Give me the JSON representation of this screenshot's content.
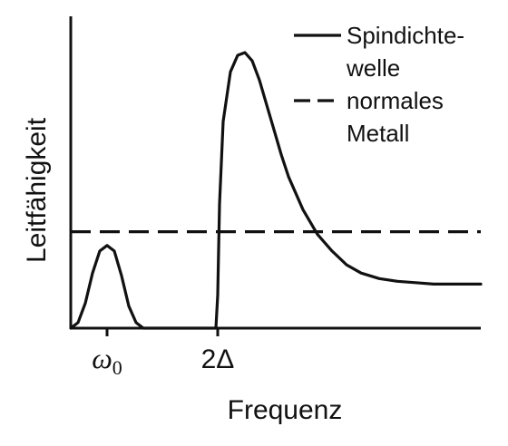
{
  "chart_data": {
    "type": "line",
    "xlabel": "Frequenz",
    "ylabel": "Leitfähigkeit",
    "x_ticks": [
      {
        "label": "ω",
        "subscript": "0",
        "x": 1.0
      },
      {
        "label": "2Δ",
        "subscript": "",
        "x": 4.05
      }
    ],
    "xlim": [
      0,
      11.3
    ],
    "ylim": [
      0,
      1.0
    ],
    "grid": false,
    "legend": {
      "placement": "top-right",
      "entries": [
        {
          "lines": [
            "Spindichte-",
            "welle"
          ],
          "style": "solid"
        },
        {
          "lines": [
            "normales",
            "Metall"
          ],
          "style": "dashed"
        }
      ]
    },
    "series": [
      {
        "style": "solid",
        "color": "#111111",
        "x": [
          0,
          0.2,
          0.4,
          0.6,
          0.8,
          1.0,
          1.2,
          1.4,
          1.6,
          1.8,
          2.0,
          4.0,
          4.05,
          4.1,
          4.2,
          4.4,
          4.6,
          4.8,
          5.0,
          5.2,
          5.4,
          5.6,
          5.8,
          6.0,
          6.4,
          6.8,
          7.2,
          7.6,
          8.0,
          8.5,
          9.0,
          9.5,
          10.0,
          10.5,
          11.3
        ],
        "y": [
          0,
          0.02,
          0.09,
          0.2,
          0.28,
          0.3,
          0.28,
          0.19,
          0.08,
          0.02,
          0,
          0,
          0.12,
          0.45,
          0.75,
          0.93,
          0.99,
          1.0,
          0.97,
          0.9,
          0.81,
          0.72,
          0.63,
          0.55,
          0.43,
          0.34,
          0.28,
          0.23,
          0.2,
          0.18,
          0.17,
          0.165,
          0.16,
          0.16,
          0.16
        ]
      },
      {
        "style": "dashed",
        "color": "#111111",
        "x": [
          0,
          11.3
        ],
        "y": [
          0.35,
          0.35
        ]
      }
    ],
    "colors": {
      "line": "#111111",
      "background": "#ffffff"
    }
  }
}
